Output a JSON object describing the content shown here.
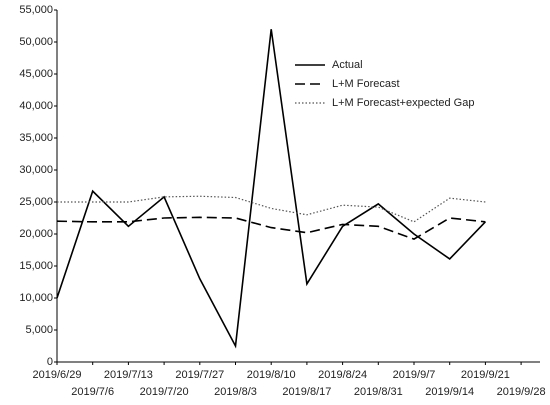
{
  "chart_data": {
    "type": "line",
    "categories": [
      "2019/6/29",
      "2019/7/6",
      "2019/7/13",
      "2019/7/20",
      "2019/7/27",
      "2019/8/3",
      "2019/8/10",
      "2019/8/17",
      "2019/8/24",
      "2019/8/31",
      "2019/9/7",
      "2019/9/14",
      "2019/9/21",
      "2019/9/28"
    ],
    "series": [
      {
        "name": "Actual",
        "color": "#000000",
        "dash": "solid",
        "values": [
          10000,
          26700,
          21200,
          25800,
          13000,
          2500,
          52000,
          12200,
          21200,
          24700,
          20000,
          16100,
          21900,
          null
        ]
      },
      {
        "name": "L+M Forecast",
        "color": "#000000",
        "dash": "dashed",
        "values": [
          22000,
          21900,
          21900,
          22500,
          22600,
          22500,
          21000,
          20200,
          21500,
          21200,
          19200,
          22500,
          21900,
          null
        ]
      },
      {
        "name": "L+M Forecast+expected Gap",
        "color": "#555555",
        "dash": "dotted",
        "values": [
          25000,
          25000,
          25000,
          25800,
          25900,
          25700,
          24000,
          23000,
          24500,
          24200,
          21900,
          25600,
          25000,
          null
        ]
      }
    ],
    "ylim": [
      0,
      55000
    ],
    "yticks": [
      0,
      {
        "value": 5000,
        "label": "5,000"
      },
      {
        "value": 10000,
        "label": "10,000"
      },
      {
        "value": 15000,
        "label": "15,000"
      },
      {
        "value": 20000,
        "label": "20,000"
      },
      {
        "value": 25000,
        "label": "25,000"
      },
      {
        "value": 30000,
        "label": "30,000"
      },
      {
        "value": 35000,
        "label": "35,000"
      },
      {
        "value": 40000,
        "label": "40,000"
      },
      {
        "value": 45000,
        "label": "45,000"
      },
      {
        "value": 50000,
        "label": "50,000"
      },
      {
        "value": 55000,
        "label": "55,000"
      }
    ],
    "legend": "upper right",
    "grid": false
  }
}
